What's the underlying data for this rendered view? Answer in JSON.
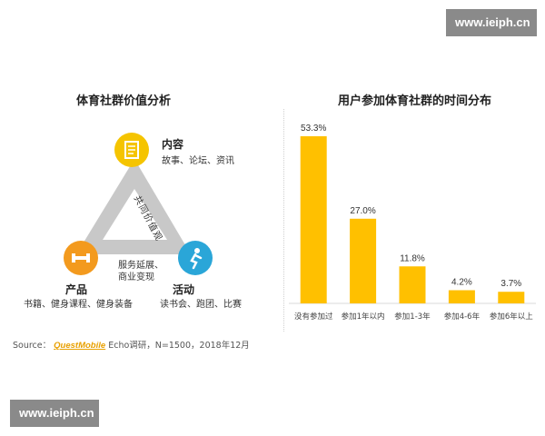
{
  "watermark_text": "www.ieiph.cn",
  "left_panel": {
    "title": "体育社群价值分析",
    "nodes": [
      {
        "id": "content",
        "label": "内容",
        "sub": "故事、论坛、资讯",
        "color": "#f5c400",
        "icon": "document-icon"
      },
      {
        "id": "product",
        "label": "产品",
        "sub": "书籍、健身课程、健身装备",
        "color": "#f39a1e",
        "icon": "dumbbell-icon"
      },
      {
        "id": "activity",
        "label": "活动",
        "sub": "读书会、跑团、比赛",
        "color": "#2aa6d8",
        "icon": "runner-icon"
      }
    ],
    "edge_label": "共同价值观",
    "center_label": [
      "服务延展、",
      "商业变现"
    ]
  },
  "source": {
    "prefix": "Source：",
    "brand": "QuestMobile",
    "rest": "Echo调研，N=1500，2018年12月"
  },
  "chart_data": {
    "type": "bar",
    "title": "用户参加体育社群的时间分布",
    "categories": [
      "没有参加过",
      "参加1年以内",
      "参加1-3年",
      "参加4-6年",
      "参加6年以上"
    ],
    "values": [
      53.3,
      27.0,
      11.8,
      4.2,
      3.7
    ],
    "value_labels": [
      "53.3%",
      "27.0%",
      "11.8%",
      "4.2%",
      "3.7%"
    ],
    "color": "#ffc000",
    "ylim": [
      0,
      53.3
    ],
    "grid": false,
    "legend": "none"
  }
}
